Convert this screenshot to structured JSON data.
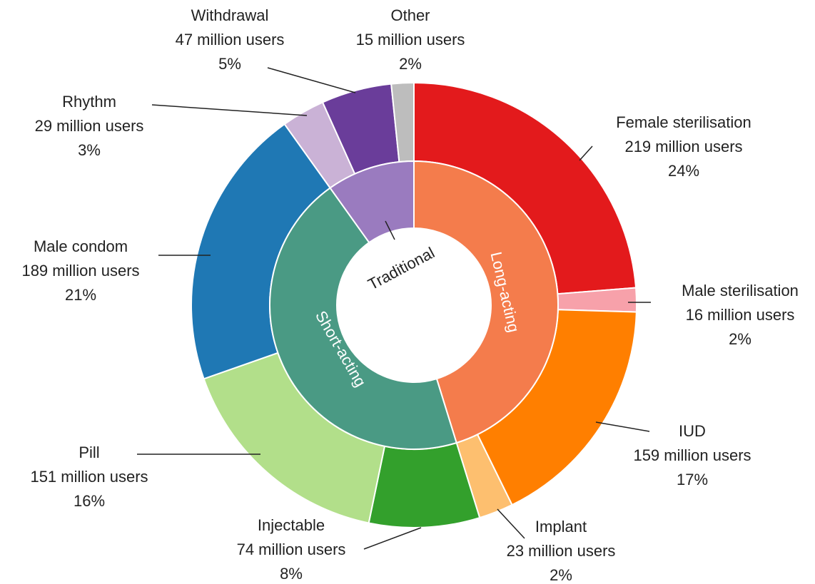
{
  "chart_data": {
    "type": "sunburst",
    "groups": [
      {
        "name": "Long-acting",
        "color": "#f47c4c",
        "categories": [
          "Female sterilisation",
          "Male sterilisation",
          "IUD",
          "Implant"
        ],
        "values": [
          219,
          16,
          159,
          23
        ],
        "value_labels": [
          "219 million users",
          "16 million users",
          "159 million users",
          "23 million users"
        ],
        "percent_labels": [
          "24%",
          "2%",
          "17%",
          "2%"
        ],
        "colors": [
          "#e31a1c",
          "#f7a1aa",
          "#ff7f00",
          "#fdbf6f"
        ]
      },
      {
        "name": "Short-acting",
        "color": "#4a9a84",
        "categories": [
          "Injectable",
          "Pill",
          "Male condom"
        ],
        "values": [
          74,
          151,
          189
        ],
        "value_labels": [
          "74 million users",
          "151 million users",
          "189 million users"
        ],
        "percent_labels": [
          "8%",
          "16%",
          "21%"
        ],
        "colors": [
          "#33a02c",
          "#b2df8a",
          "#1f78b4"
        ]
      },
      {
        "name": "Traditional",
        "color": "#9a7bbf",
        "categories": [
          "Rhythm",
          "Withdrawal",
          "Other"
        ],
        "values": [
          29,
          47,
          15
        ],
        "value_labels": [
          "29 million users",
          "47 million users",
          "15 million users"
        ],
        "percent_labels": [
          "3%",
          "5%",
          "2%"
        ],
        "colors": [
          "#cab2d6",
          "#6a3d9a",
          "#bdbdbd"
        ]
      }
    ]
  }
}
